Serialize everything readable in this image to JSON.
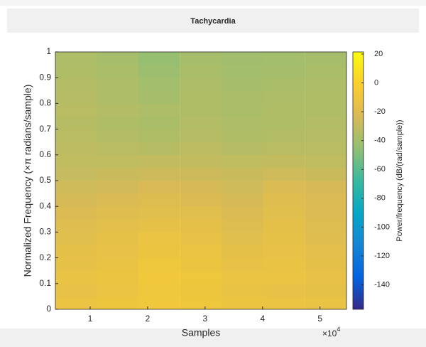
{
  "chart_data": {
    "type": "heatmap",
    "title": "Tachycardia",
    "x_label": "Samples",
    "y_label": "Normalized Frequency  (×π radians/sample)",
    "x_exponent": {
      "base": "×10",
      "power": "4"
    },
    "colorbar_label": "Power/frequency (dB/(rad/sample))",
    "x": [
      0.757,
      1.48,
      2.2,
      2.93,
      3.65,
      4.37,
      5.1
    ],
    "y": [
      0.025,
      0.075,
      0.125,
      0.175,
      0.225,
      0.275,
      0.325,
      0.375,
      0.425,
      0.475,
      0.525,
      0.575,
      0.625,
      0.675,
      0.725,
      0.775,
      0.825,
      0.875,
      0.925,
      0.975
    ],
    "z": [
      [
        -12,
        -10,
        -8,
        -9,
        -11,
        -12,
        -13
      ],
      [
        -14,
        -12,
        -9,
        -10,
        -13,
        -14,
        -15
      ],
      [
        -13,
        -11,
        -8,
        -9,
        -12,
        -12,
        -14
      ],
      [
        -15,
        -13,
        -9,
        -11,
        -14,
        -13,
        -16
      ],
      [
        -16,
        -14,
        -11,
        -12,
        -16,
        -14,
        -17
      ],
      [
        -18,
        -15,
        -12,
        -14,
        -18,
        -15,
        -19
      ],
      [
        -19,
        -17,
        -15,
        -16,
        -20,
        -16,
        -20
      ],
      [
        -21,
        -19,
        -18,
        -18,
        -22,
        -18,
        -21
      ],
      [
        -24,
        -22,
        -20,
        -21,
        -24,
        -19,
        -22
      ],
      [
        -26,
        -25,
        -23,
        -24,
        -26,
        -22,
        -24
      ],
      [
        -29,
        -28,
        -27,
        -27,
        -28,
        -26,
        -28
      ],
      [
        -31,
        -31,
        -30,
        -30,
        -31,
        -30,
        -31
      ],
      [
        -32,
        -33,
        -34,
        -32,
        -34,
        -33,
        -33
      ],
      [
        -33,
        -35,
        -36,
        -34,
        -36,
        -35,
        -34
      ],
      [
        -34,
        -36,
        -38,
        -35,
        -37,
        -36,
        -35
      ],
      [
        -33,
        -35,
        -37,
        -36,
        -38,
        -36,
        -36
      ],
      [
        -34,
        -37,
        -39,
        -36,
        -38,
        -37,
        -36
      ],
      [
        -35,
        -37,
        -40,
        -37,
        -39,
        -38,
        -37
      ],
      [
        -36,
        -38,
        -42,
        -38,
        -40,
        -39,
        -38
      ],
      [
        -37,
        -39,
        -44,
        -39,
        -41,
        -40,
        -39
      ]
    ],
    "xlim": [
      0.395,
      5.46
    ],
    "xticks": [
      1,
      2,
      3,
      4,
      5
    ],
    "ylim": [
      0,
      1
    ],
    "yticks": [
      0,
      0.1,
      0.2,
      0.3,
      0.4,
      0.5,
      0.6,
      0.7,
      0.8,
      0.9,
      1
    ],
    "clim": [
      -157,
      21.5
    ],
    "cticks": [
      20,
      0,
      -20,
      -40,
      -60,
      -80,
      -100,
      -120,
      -140
    ],
    "colormap": [
      "#352a87",
      "#0363e1",
      "#1485d4",
      "#06a7c6",
      "#38b99e",
      "#92bf73",
      "#d9ba56",
      "#fcce2e",
      "#f9fb0e"
    ]
  }
}
